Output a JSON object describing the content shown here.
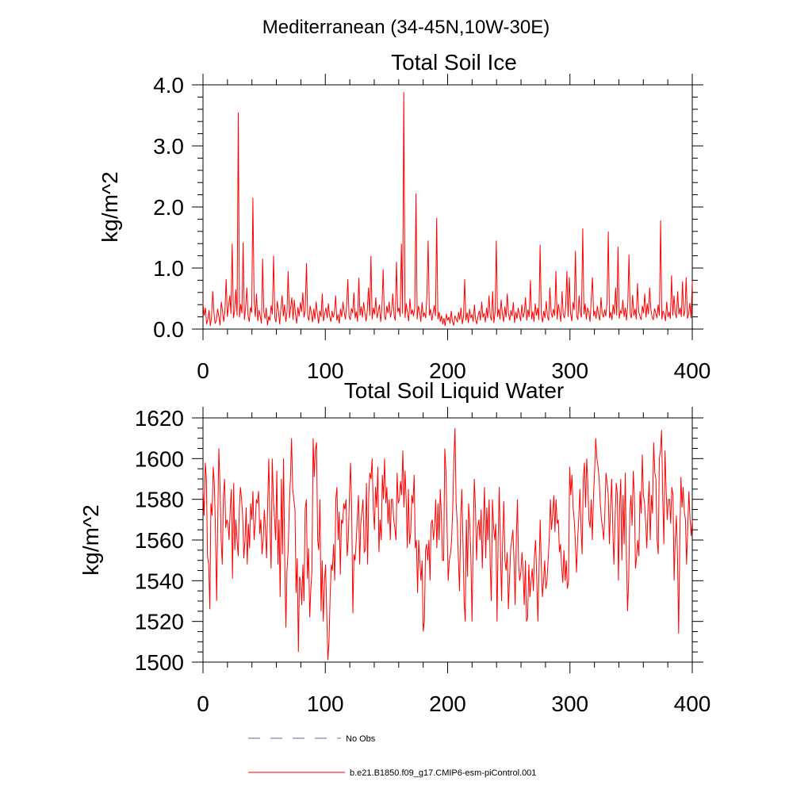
{
  "figure": {
    "main_title": "Mediterranean (34-45N,10W-30E)"
  },
  "chart_data": [
    {
      "type": "line",
      "title": "Total Soil Ice",
      "xlabel": "",
      "ylabel": "kg/m^2",
      "xlim": [
        0,
        400
      ],
      "ylim": [
        0,
        4.0
      ],
      "x_ticks": [
        "0",
        "100",
        "200",
        "300",
        "400"
      ],
      "y_ticks": [
        "0.0",
        "1.0",
        "2.0",
        "3.0",
        "4.0"
      ],
      "series": [
        {
          "name": "b.e21.B1850.f09_g17.CMIP6-esm-piControl.001",
          "color": "#ff0000",
          "values": [
            0.42,
            0.22,
            0.35,
            0.08,
            0.15,
            0.31,
            0.05,
            0.18,
            0.62,
            0.27,
            0.09,
            0.14,
            0.33,
            0.21,
            0.06,
            0.45,
            0.3,
            0.12,
            0.28,
            0.82,
            0.2,
            0.37,
            0.55,
            0.25,
            1.4,
            0.18,
            0.3,
            0.65,
            0.22,
            3.55,
            0.19,
            0.41,
            0.26,
            1.42,
            0.15,
            0.33,
            0.68,
            0.22,
            0.12,
            0.36,
            0.27,
            2.15,
            0.44,
            0.2,
            0.58,
            0.13,
            0.31,
            0.22,
            0.09,
            1.15,
            0.28,
            0.17,
            0.35,
            0.06,
            0.21,
            0.14,
            0.39,
            0.24,
            1.2,
            0.18,
            0.11,
            0.46,
            0.29,
            0.08,
            0.33,
            0.55,
            0.21,
            0.4,
            0.12,
            0.27,
            0.95,
            0.18,
            0.35,
            0.52,
            0.15,
            0.48,
            0.25,
            0.09,
            0.36,
            0.21,
            0.44,
            0.28,
            0.6,
            0.19,
            0.31,
            1.08,
            0.22,
            0.14,
            0.38,
            0.27,
            0.11,
            0.33,
            0.16,
            0.45,
            0.24,
            0.09,
            0.3,
            0.2,
            0.58,
            0.13,
            0.25,
            0.35,
            0.18,
            0.42,
            0.22,
            0.12,
            0.3,
            0.19,
            0.27,
            0.55,
            0.14,
            0.24,
            0.09,
            0.33,
            0.2,
            0.45,
            0.28,
            0.16,
            0.38,
            0.82,
            0.21,
            0.15,
            0.34,
            0.26,
            0.6,
            0.18,
            0.29,
            0.12,
            0.84,
            0.22,
            0.37,
            0.19,
            0.44,
            0.27,
            0.13,
            0.31,
            0.68,
            0.22,
            1.2,
            0.16,
            0.35,
            0.24,
            0.52,
            0.18,
            0.28,
            0.4,
            0.12,
            0.33,
            0.98,
            0.21,
            0.15,
            0.38,
            0.26,
            0.45,
            0.19,
            0.3,
            0.58,
            0.22,
            0.14,
            1.1,
            0.28,
            0.35,
            0.2,
            1.4,
            0.25,
            3.88,
            0.18,
            0.42,
            0.27,
            0.13,
            0.5,
            0.24,
            0.32,
            0.21,
            0.35,
            2.22,
            0.16,
            0.38,
            0.29,
            0.12,
            0.44,
            0.2,
            0.27,
            0.18,
            0.58,
            1.45,
            0.22,
            0.33,
            0.14,
            0.26,
            0.39,
            0.21,
            1.82,
            0.16,
            0.28,
            0.12,
            0.22,
            0.08,
            0.18,
            0.05,
            0.25,
            0.14,
            0.2,
            0.09,
            0.3,
            0.12,
            0.06,
            0.22,
            0.17,
            0.11,
            0.28,
            0.15,
            0.35,
            0.08,
            0.2,
            0.82,
            0.14,
            0.27,
            0.1,
            0.33,
            0.18,
            0.24,
            0.12,
            0.4,
            0.16,
            0.08,
            0.22,
            0.3,
            0.14,
            0.45,
            0.19,
            0.26,
            0.11,
            0.35,
            0.18,
            0.55,
            0.22,
            0.14,
            0.62,
            0.1,
            0.28,
            1.45,
            0.2,
            0.33,
            0.16,
            0.48,
            0.24,
            0.12,
            0.37,
            0.19,
            0.58,
            0.26,
            0.14,
            0.31,
            0.21,
            0.44,
            0.1,
            0.28,
            0.17,
            0.35,
            0.23,
            0.13,
            0.4,
            0.19,
            0.27,
            0.52,
            0.14,
            0.32,
            0.2,
            0.8,
            0.16,
            0.29,
            0.12,
            0.42,
            0.22,
            0.35,
            0.15,
            1.38,
            0.24,
            0.11,
            0.3,
            0.18,
            0.46,
            0.21,
            0.14,
            0.68,
            0.27,
            0.19,
            0.33,
            0.22,
            0.95,
            0.16,
            0.41,
            0.28,
            0.12,
            0.62,
            0.24,
            0.18,
            0.36,
            0.95,
            0.2,
            0.85,
            0.26,
            0.13,
            0.44,
            0.31,
            1.28,
            0.22,
            0.15,
            0.55,
            0.27,
            0.19,
            1.65,
            0.24,
            0.42,
            0.16,
            0.35,
            0.28,
            0.12,
            0.48,
            0.85,
            0.21,
            0.3,
            0.17,
            0.38,
            0.24,
            0.14,
            0.52,
            0.26,
            0.19,
            0.32,
            0.21,
            0.45,
            1.6,
            0.18,
            0.28,
            0.15,
            0.4,
            0.24,
            0.68,
            0.22,
            1.35,
            0.17,
            0.3,
            0.26,
            0.48,
            0.2,
            0.35,
            0.14,
            0.42,
            1.22,
            0.25,
            0.18,
            0.56,
            0.22,
            0.33,
            0.16,
            0.75,
            0.28,
            0.21,
            0.15,
            0.38,
            0.26,
            0.58,
            0.19,
            0.42,
            0.24,
            0.68,
            0.32,
            0.2,
            0.15,
            0.34,
            0.26,
            0.18,
            0.4,
            0.22,
            1.78,
            0.16,
            0.3,
            0.24,
            0.13,
            0.45,
            0.2,
            0.28,
            0.17,
            0.88,
            0.22,
            0.55,
            0.26,
            0.18,
            0.62,
            0.24,
            0.35,
            0.2,
            0.78,
            0.21,
            0.3,
            0.85,
            0.17,
            0.25,
            0.43,
            0.18,
            0.78
          ]
        },
        {
          "name": "No Obs",
          "color": "#5a6aa8",
          "values": []
        }
      ]
    },
    {
      "type": "line",
      "title": "Total Soil Liquid Water",
      "xlabel": "",
      "ylabel": "kg/m^2",
      "xlim": [
        0,
        400
      ],
      "ylim": [
        1500,
        1620
      ],
      "x_ticks": [
        "0",
        "100",
        "200",
        "300",
        "400"
      ],
      "y_ticks": [
        "1500",
        "1520",
        "1540",
        "1560",
        "1580",
        "1600",
        "1620"
      ],
      "series": [
        {
          "name": "b.e21.B1850.f09_g17.CMIP6-esm-piControl.001",
          "color": "#ff0000",
          "values": [
            1585,
            1572,
            1598,
            1590,
            1552,
            1548,
            1526,
            1578,
            1572,
            1596,
            1588,
            1565,
            1530,
            1570,
            1605,
            1586,
            1560,
            1548,
            1582,
            1590,
            1566,
            1570,
            1568,
            1560,
            1576,
            1585,
            1541,
            1588,
            1555,
            1570,
            1560,
            1552,
            1575,
            1586,
            1580,
            1571,
            1551,
            1560,
            1576,
            1548,
            1568,
            1556,
            1578,
            1570,
            1584,
            1560,
            1568,
            1580,
            1578,
            1584,
            1563,
            1570,
            1553,
            1560,
            1575,
            1566,
            1551,
            1578,
            1600,
            1566,
            1546,
            1600,
            1580,
            1571,
            1560,
            1594,
            1548,
            1570,
            1532,
            1590,
            1553,
            1600,
            1550,
            1517,
            1545,
            1555,
            1576,
            1590,
            1610,
            1585,
            1580,
            1575,
            1534,
            1551,
            1505,
            1542,
            1540,
            1528,
            1548,
            1530,
            1575,
            1580,
            1541,
            1556,
            1522,
            1536,
            1545,
            1610,
            1591,
            1604,
            1608,
            1560,
            1555,
            1580,
            1525,
            1550,
            1520,
            1540,
            1548,
            1525,
            1501,
            1510,
            1532,
            1548,
            1545,
            1558,
            1540,
            1580,
            1586,
            1560,
            1574,
            1543,
            1570,
            1568,
            1578,
            1575,
            1580,
            1552,
            1560,
            1582,
            1598,
            1575,
            1524,
            1553,
            1550,
            1560,
            1572,
            1582,
            1548,
            1568,
            1574,
            1580,
            1554,
            1555,
            1588,
            1548,
            1582,
            1593,
            1590,
            1600,
            1576,
            1565,
            1586,
            1576,
            1596,
            1554,
            1570,
            1560,
            1592,
            1580,
            1600,
            1578,
            1586,
            1568,
            1580,
            1560,
            1580,
            1580,
            1570,
            1566,
            1560,
            1593,
            1578,
            1580,
            1589,
            1582,
            1604,
            1576,
            1594,
            1580,
            1556,
            1585,
            1558,
            1564,
            1582,
            1578,
            1592,
            1556,
            1560,
            1534,
            1560,
            1550,
            1540,
            1550,
            1515,
            1520,
            1555,
            1558,
            1550,
            1560,
            1540,
            1568,
            1570,
            1560,
            1566,
            1580,
            1556,
            1578,
            1560,
            1585,
            1572,
            1550,
            1550,
            1605,
            1594,
            1566,
            1540,
            1550,
            1553,
            1560,
            1575,
            1600,
            1615,
            1578,
            1568,
            1550,
            1535,
            1570,
            1585,
            1560,
            1530,
            1520,
            1570,
            1542,
            1578,
            1568,
            1552,
            1520,
            1560,
            1590,
            1576,
            1550,
            1566,
            1570,
            1560,
            1575,
            1546,
            1568,
            1586,
            1551,
            1576,
            1560,
            1580,
            1548,
            1530,
            1580,
            1566,
            1560,
            1568,
            1520,
            1560,
            1586,
            1556,
            1530,
            1560,
            1579,
            1550,
            1545,
            1554,
            1526,
            1540,
            1556,
            1560,
            1565,
            1550,
            1528,
            1560,
            1580,
            1548,
            1540,
            1544,
            1554,
            1545,
            1528,
            1550,
            1520,
            1522,
            1548,
            1532,
            1540,
            1546,
            1535,
            1552,
            1560,
            1541,
            1520,
            1544,
            1570,
            1548,
            1532,
            1540,
            1550,
            1536,
            1540,
            1550,
            1560,
            1580,
            1565,
            1572,
            1582,
            1564,
            1580,
            1568,
            1570,
            1554,
            1558,
            1546,
            1539,
            1555,
            1540,
            1550,
            1536,
            1540,
            1596,
            1582,
            1592,
            1576,
            1570,
            1560,
            1544,
            1560,
            1570,
            1585,
            1566,
            1553,
            1590,
            1598,
            1576,
            1600,
            1588,
            1570,
            1566,
            1580,
            1560,
            1582,
            1594,
            1610,
            1600,
            1596,
            1590,
            1578,
            1570,
            1566,
            1560,
            1574,
            1593,
            1588,
            1582,
            1558,
            1576,
            1590,
            1565,
            1548,
            1570,
            1588,
            1583,
            1540,
            1576,
            1590,
            1550,
            1582,
            1558,
            1593,
            1551,
            1525,
            1540,
            1573,
            1582,
            1567,
            1594,
            1582,
            1546,
            1552,
            1560,
            1552,
            1584,
            1573,
            1602,
            1582,
            1578,
            1568,
            1556,
            1576,
            1589,
            1560,
            1582,
            1573,
            1608,
            1593,
            1590,
            1560,
            1553,
            1600,
            1604,
            1614,
            1580,
            1558,
            1604,
            1584,
            1570,
            1580,
            1580,
            1568,
            1586,
            1582,
            1540,
            1560,
            1572,
            1551,
            1514,
            1560,
            1591,
            1576,
            1586,
            1574,
            1570,
            1548,
            1566,
            1584,
            1571,
            1562,
            1570
          ]
        },
        {
          "name": "No Obs",
          "color": "#5a6aa8",
          "values": []
        }
      ]
    }
  ],
  "legend": {
    "entries": [
      {
        "label": "No Obs",
        "style": "dashed",
        "color": "#5a6aa8"
      },
      {
        "label": "b.e21.B1850.f09_g17.CMIP6-esm-piControl.001",
        "style": "solid",
        "color": "#ff0000"
      }
    ]
  }
}
